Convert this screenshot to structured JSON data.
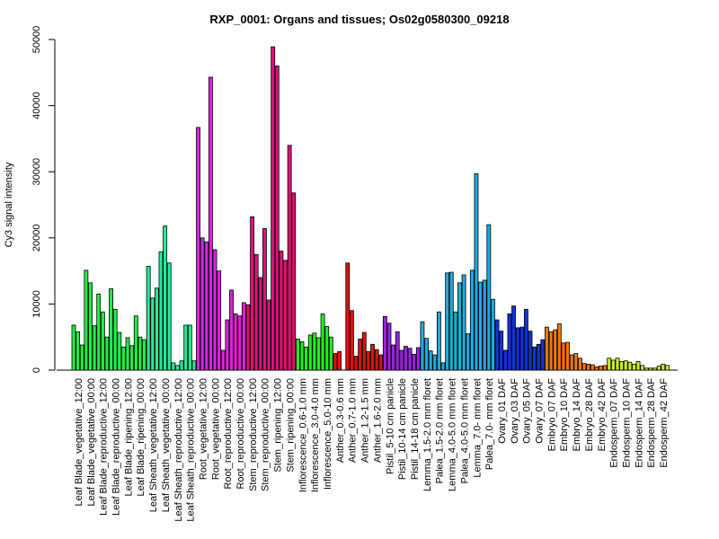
{
  "chart_data": {
    "type": "bar",
    "title": "RXP_0001: Organs and tissues; Os02g0580300_09218",
    "xlabel": "",
    "ylabel": "Cy3 signal intensity",
    "ylim": [
      0,
      50000
    ],
    "yticks": [
      0,
      10000,
      20000,
      30000,
      40000,
      50000
    ],
    "grid": false,
    "groups": [
      {
        "label": "Leaf Blade_vegetative_12:00",
        "color": "#22ee44",
        "values": [
          6800,
          5800,
          3800
        ]
      },
      {
        "label": "Leaf Blade_vegetative_00:00",
        "color": "#22ee44",
        "values": [
          15100,
          13200,
          6700
        ]
      },
      {
        "label": "Leaf Blade_reproductive_12:00",
        "color": "#22ee44",
        "values": [
          11500,
          8800,
          5000
        ]
      },
      {
        "label": "Leaf Blade_reproductive_00:00",
        "color": "#22ee44",
        "values": [
          12300,
          9200,
          5700
        ]
      },
      {
        "label": "Leaf Blade_ripening_12:00",
        "color": "#22ee44",
        "values": [
          3500,
          4900,
          3700
        ]
      },
      {
        "label": "Leaf Blade_ripening_00:00",
        "color": "#22ee44",
        "values": [
          8200,
          5000,
          4600
        ]
      },
      {
        "label": "Leaf Sheath_vegetative_12:00",
        "color": "#22ee99",
        "values": [
          15700,
          10900,
          12400
        ]
      },
      {
        "label": "Leaf Sheath_vegetative_00:00",
        "color": "#22ee99",
        "values": [
          17900,
          21800,
          16200
        ]
      },
      {
        "label": "Leaf Sheath_reproductive_12:00",
        "color": "#22ee99",
        "values": [
          1100,
          700,
          1400
        ]
      },
      {
        "label": "Leaf Sheath_reproductive_00:00",
        "color": "#22ee99",
        "values": [
          6800,
          6800,
          1400
        ]
      },
      {
        "label": "Root_vegetative_12:00",
        "color": "#dd22dd",
        "values": [
          36700,
          20000,
          19400
        ]
      },
      {
        "label": "Root_vegetative_00:00",
        "color": "#dd22dd",
        "values": [
          44300,
          18200,
          15000
        ]
      },
      {
        "label": "Root_reproductive_12:00",
        "color": "#dd22dd",
        "values": [
          3000,
          7600,
          12100
        ]
      },
      {
        "label": "Root_reproductive_00:00",
        "color": "#dd22dd",
        "values": [
          8500,
          8200,
          10200
        ]
      },
      {
        "label": "Stem_reproductive_12:00",
        "color": "#dd1177",
        "values": [
          9900,
          23200,
          17500
        ]
      },
      {
        "label": "Stem_reproductive_00:00",
        "color": "#dd1177",
        "values": [
          14000,
          21400,
          10600
        ]
      },
      {
        "label": "Stem_ripening_12:00",
        "color": "#dd1177",
        "values": [
          48900,
          46000,
          18000
        ]
      },
      {
        "label": "Stem_ripening_00:00",
        "color": "#dd1177",
        "values": [
          16600,
          34000,
          26800
        ]
      },
      {
        "label": "Inflorescence_0.6-1.0 mm",
        "color": "#22ee22",
        "values": [
          4700,
          4300,
          3500
        ]
      },
      {
        "label": "Inflorescence_3.0-4.0 mm",
        "color": "#22ee22",
        "values": [
          5300,
          5600,
          4900
        ]
      },
      {
        "label": "Inflorescence_5.0-10 mm",
        "color": "#22ee22",
        "values": [
          8500,
          6600,
          5000
        ]
      },
      {
        "label": "Anther_0.3-0.6 mm",
        "color": "#dd1111",
        "values": [
          2500,
          2800
        ]
      },
      {
        "label": "Anther_0.7-1.0 mm",
        "color": "#dd1111",
        "values": [
          16200,
          9000,
          2100
        ]
      },
      {
        "label": "Anther_1.2-1.5 mm",
        "color": "#dd1111",
        "values": [
          4700,
          5700,
          2800
        ]
      },
      {
        "label": "Anther_1.6-2.0 mm",
        "color": "#dd1111",
        "values": [
          3900,
          3100,
          2300
        ]
      },
      {
        "label": "Pistil_5-10 cm panicle",
        "color": "#9922dd",
        "values": [
          8100,
          7100,
          3800
        ]
      },
      {
        "label": "Pistil_10-14 cm panicle",
        "color": "#9922dd",
        "values": [
          5800,
          3000,
          3600
        ]
      },
      {
        "label": "Pistil_14-18 cm panicle",
        "color": "#9922dd",
        "values": [
          3300,
          2400,
          3400
        ]
      },
      {
        "label": "Lemma_1.5-2.0 mm floret",
        "color": "#22aadd",
        "values": [
          7300,
          4800,
          2900
        ]
      },
      {
        "label": "Palea_1.5-2.0 mm floret",
        "color": "#22aadd",
        "values": [
          2300,
          8800,
          1100
        ]
      },
      {
        "label": "Lemma_4.0-5.0 mm floret",
        "color": "#22aadd",
        "values": [
          14700,
          14800,
          8800
        ]
      },
      {
        "label": "Palea_4.0-5.0 mm floret",
        "color": "#22aadd",
        "values": [
          13200,
          14400,
          5500
        ]
      },
      {
        "label": "Lemma_7.0- mm floret",
        "color": "#22aadd",
        "values": [
          15100,
          29700,
          13300
        ]
      },
      {
        "label": "Palea_7.0- mm floret",
        "color": "#22aadd",
        "values": [
          13600,
          22000,
          10700
        ]
      },
      {
        "label": "Ovary_01 DAF",
        "color": "#1133dd",
        "values": [
          7600,
          5900,
          3000
        ]
      },
      {
        "label": "Ovary_03 DAF",
        "color": "#1133dd",
        "values": [
          8500,
          9700,
          6400
        ]
      },
      {
        "label": "Ovary_05 DAF",
        "color": "#1133dd",
        "values": [
          6500,
          9200,
          5900
        ]
      },
      {
        "label": "Ovary_07 DAF",
        "color": "#1133dd",
        "values": [
          3500,
          3900,
          4600
        ]
      },
      {
        "label": "Embryo_07 DAF",
        "color": "#ee7711",
        "values": [
          6500,
          5800,
          6100
        ]
      },
      {
        "label": "Embryo_10 DAF",
        "color": "#ee7711",
        "values": [
          7000,
          4100,
          4200
        ]
      },
      {
        "label": "Embryo_14 DAF",
        "color": "#ee7711",
        "values": [
          2300,
          2500,
          1800
        ]
      },
      {
        "label": "Embryo_28 DAF",
        "color": "#ee7711",
        "values": [
          1000,
          900,
          800
        ]
      },
      {
        "label": "Embryo_42 DAF",
        "color": "#ee7711",
        "values": [
          500,
          600,
          700
        ]
      },
      {
        "label": "Endosperm_07 DAF",
        "color": "#ccee22",
        "values": [
          1800,
          1500,
          1800
        ]
      },
      {
        "label": "Endosperm_10 DAF",
        "color": "#ccee22",
        "values": [
          1300,
          1400,
          1200
        ]
      },
      {
        "label": "Endosperm_14 DAF",
        "color": "#ccee22",
        "values": [
          900,
          1300,
          700
        ]
      },
      {
        "label": "Endosperm_28 DAF",
        "color": "#ccee22",
        "values": [
          300,
          300,
          300
        ]
      },
      {
        "label": "Endosperm_42 DAF",
        "color": "#ccee22",
        "values": [
          600,
          900,
          700
        ]
      }
    ]
  }
}
